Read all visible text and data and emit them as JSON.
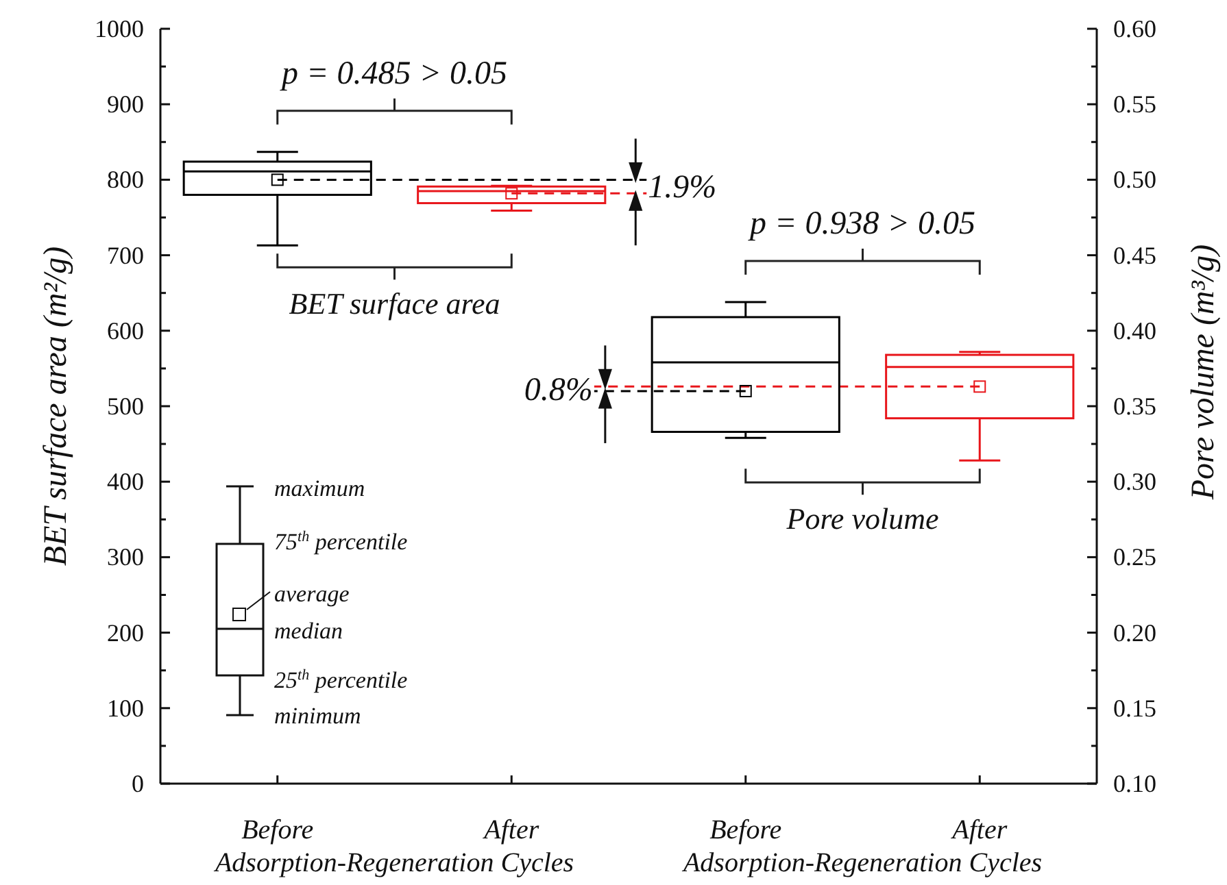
{
  "chart_data": {
    "type": "box",
    "ylabel": "BET surface area (m²/g)",
    "y2label": "Pore volume (m³/g)",
    "categories": [
      "Before",
      "After",
      "Before",
      "After"
    ],
    "ylim": [
      0,
      1000
    ],
    "yticks": [
      0,
      {
        "value": 50,
        "label": null
      },
      100,
      {
        "value": 150,
        "label": null
      },
      200,
      {
        "value": 250,
        "label": null
      },
      300,
      {
        "value": 350,
        "label": null
      },
      400,
      {
        "value": 450,
        "label": null
      },
      500,
      {
        "value": 550,
        "label": null
      },
      600,
      {
        "value": 650,
        "label": null
      },
      700,
      {
        "value": 750,
        "label": null
      },
      800,
      {
        "value": 850,
        "label": null
      },
      900,
      {
        "value": 950,
        "label": null
      },
      1000
    ],
    "y2lim": [
      0.1,
      0.6
    ],
    "y2ticks": [
      {
        "value": 0.1,
        "label": "0.10"
      },
      {
        "value": 0.125,
        "label": null
      },
      {
        "value": 0.15,
        "label": "0.15"
      },
      {
        "value": 0.175,
        "label": null
      },
      {
        "value": 0.2,
        "label": "0.20"
      },
      {
        "value": 0.225,
        "label": null
      },
      {
        "value": 0.25,
        "label": "0.25"
      },
      {
        "value": 0.275,
        "label": null
      },
      {
        "value": 0.3,
        "label": "0.30"
      },
      {
        "value": 0.325,
        "label": null
      },
      {
        "value": 0.35,
        "label": "0.35"
      },
      {
        "value": 0.375,
        "label": null
      },
      {
        "value": 0.4,
        "label": "0.40"
      },
      {
        "value": 0.425,
        "label": null
      },
      {
        "value": 0.45,
        "label": "0.45"
      },
      {
        "value": 0.475,
        "label": null
      },
      {
        "value": 0.5,
        "label": "0.50"
      },
      {
        "value": 0.525,
        "label": null
      },
      {
        "value": 0.55,
        "label": "0.55"
      },
      {
        "value": 0.575,
        "label": null
      },
      {
        "value": 0.6,
        "label": "0.60"
      }
    ],
    "series": [
      {
        "color": "#000000",
        "boxes": [
          {
            "low": 713,
            "q1": 780,
            "median": 811,
            "q3": 824,
            "high": 837,
            "mean": 800
          },
          null,
          null,
          null
        ]
      },
      {
        "color": "#e8161b",
        "boxes": [
          null,
          {
            "low": 759,
            "q1": 769,
            "median": 785,
            "q3": 791,
            "high": 792,
            "mean": 782
          },
          null,
          null
        ]
      },
      {
        "color": "#000000",
        "axis": "y2",
        "boxes": [
          null,
          null,
          {
            "low": 0.329,
            "q1": 0.333,
            "median": 0.379,
            "q3": 0.409,
            "high": 0.419,
            "mean": 0.36
          },
          null
        ]
      },
      {
        "color": "#e8161b",
        "axis": "y2",
        "boxes": [
          null,
          null,
          null,
          {
            "low": 0.314,
            "q1": 0.342,
            "median": 0.376,
            "q3": 0.384,
            "high": 0.386,
            "mean": 0.363
          }
        ]
      }
    ],
    "ref_lines": [
      {
        "axis": "y",
        "value": 800,
        "color": "#000000",
        "line_style": "dashed"
      },
      {
        "axis": "y",
        "value": 782,
        "color": "#e8161b",
        "line_style": "dashed"
      },
      {
        "axis": "y2",
        "value": 0.36,
        "color": "#000000",
        "line_style": "dashed"
      },
      {
        "axis": "y2",
        "value": 0.363,
        "color": "#e8161b",
        "line_style": "dashed"
      }
    ],
    "annotations": [
      "p = 0.485 > 0.05",
      "p = 0.938 > 0.05",
      "1.9%",
      "0.8%",
      "BET surface area",
      "Pore volume",
      "Adsorption-Regeneration Cycles",
      "Adsorption-Regeneration Cycles",
      "maximum",
      "75$^{th}$ percentile",
      "average",
      "median",
      "25$^{th}$ percentile",
      "minimum"
    ],
    "grid": false
  }
}
